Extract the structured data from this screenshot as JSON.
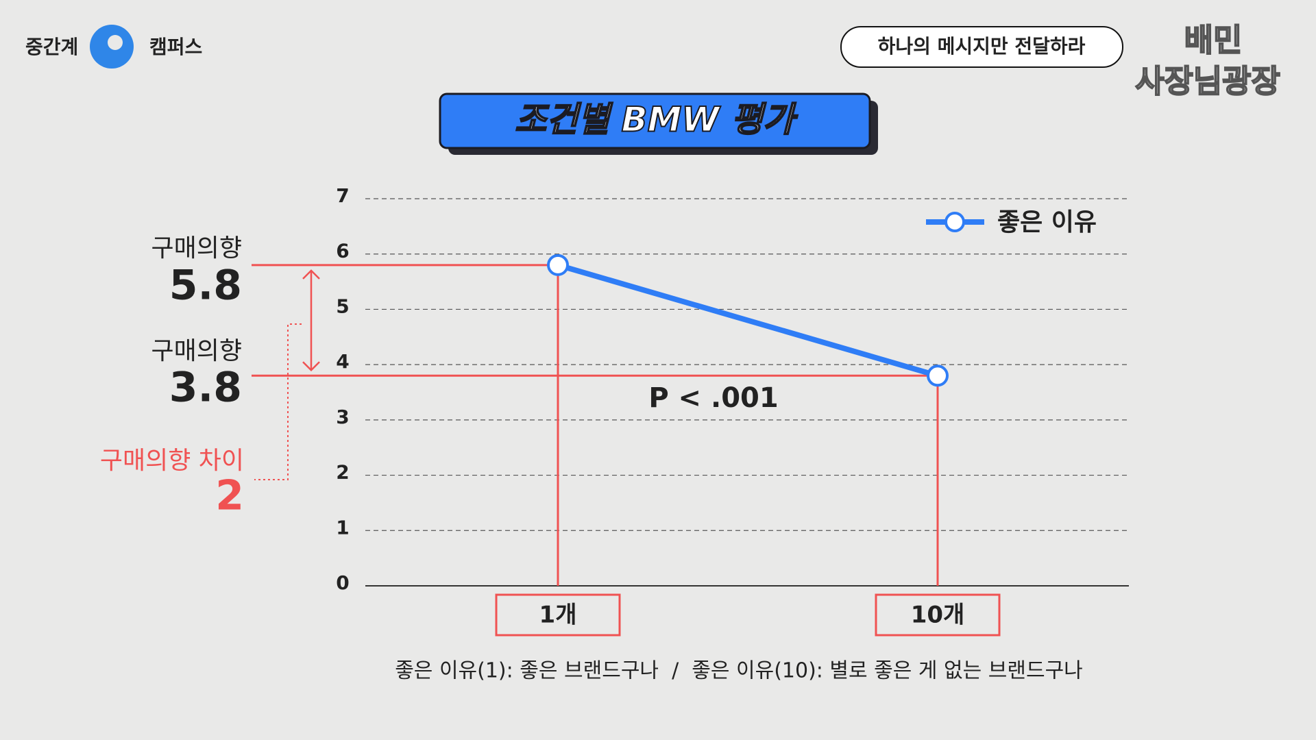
{
  "brand": {
    "left": "중간계",
    "right": "캠퍼스",
    "corner_top": "배민",
    "corner_bottom": "사장님광장"
  },
  "header": "하나의 메시지만 전달하라",
  "chart_data": {
    "type": "line",
    "title": "조건별 BMW 평가",
    "categories": [
      "1개",
      "10개"
    ],
    "series": [
      {
        "name": "좋은 이유",
        "color": "#2f7df6",
        "values": [
          5.8,
          3.8
        ]
      }
    ],
    "ylim": [
      0,
      7
    ],
    "yticks": [
      0,
      1,
      2,
      3,
      4,
      5,
      6,
      7
    ],
    "grid": true,
    "legend": "upper right",
    "annotations": [
      "구매의향",
      "구매의향",
      "구매의향 차이"
    ],
    "difference": 2,
    "stat_text": "P < .001",
    "footnote": "좋은 이유(1): 좋은 브랜드구나  /  좋은 이유(10): 별로 좋은 게 없는 브랜드구나"
  }
}
